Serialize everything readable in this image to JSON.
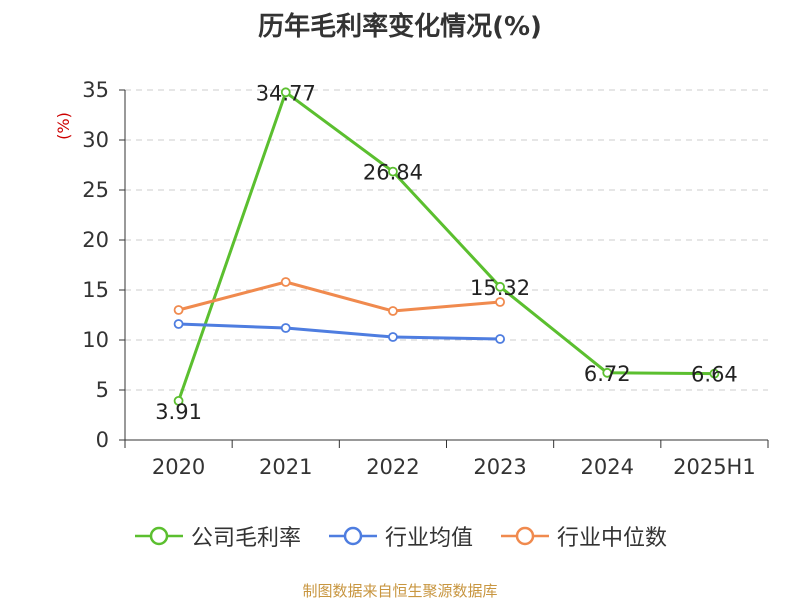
{
  "chart_data": {
    "type": "line",
    "title": "历年毛利率变化情况(%)",
    "ylabel": "(%)",
    "ylim": [
      0,
      35
    ],
    "yticks": [
      0,
      5,
      10,
      15,
      20,
      25,
      30,
      35
    ],
    "categories": [
      "2020",
      "2021",
      "2022",
      "2023",
      "2024",
      "2025H1"
    ],
    "grid": true,
    "legend_position": "bottom",
    "series": [
      {
        "name": "公司毛利率",
        "color": "#5bbf2f",
        "values": [
          3.91,
          34.77,
          26.84,
          15.32,
          6.72,
          6.64
        ],
        "labels": [
          "3.91",
          "34.77",
          "26.84",
          "15.32",
          "6.72",
          "6.64"
        ]
      },
      {
        "name": "行业均值",
        "color": "#4e7de0",
        "values": [
          11.6,
          11.2,
          10.3,
          10.1,
          null,
          null
        ]
      },
      {
        "name": "行业中位数",
        "color": "#f08a4e",
        "values": [
          13.0,
          15.8,
          12.9,
          13.8,
          null,
          null
        ]
      }
    ]
  },
  "source_note": "制图数据来自恒生聚源数据库"
}
